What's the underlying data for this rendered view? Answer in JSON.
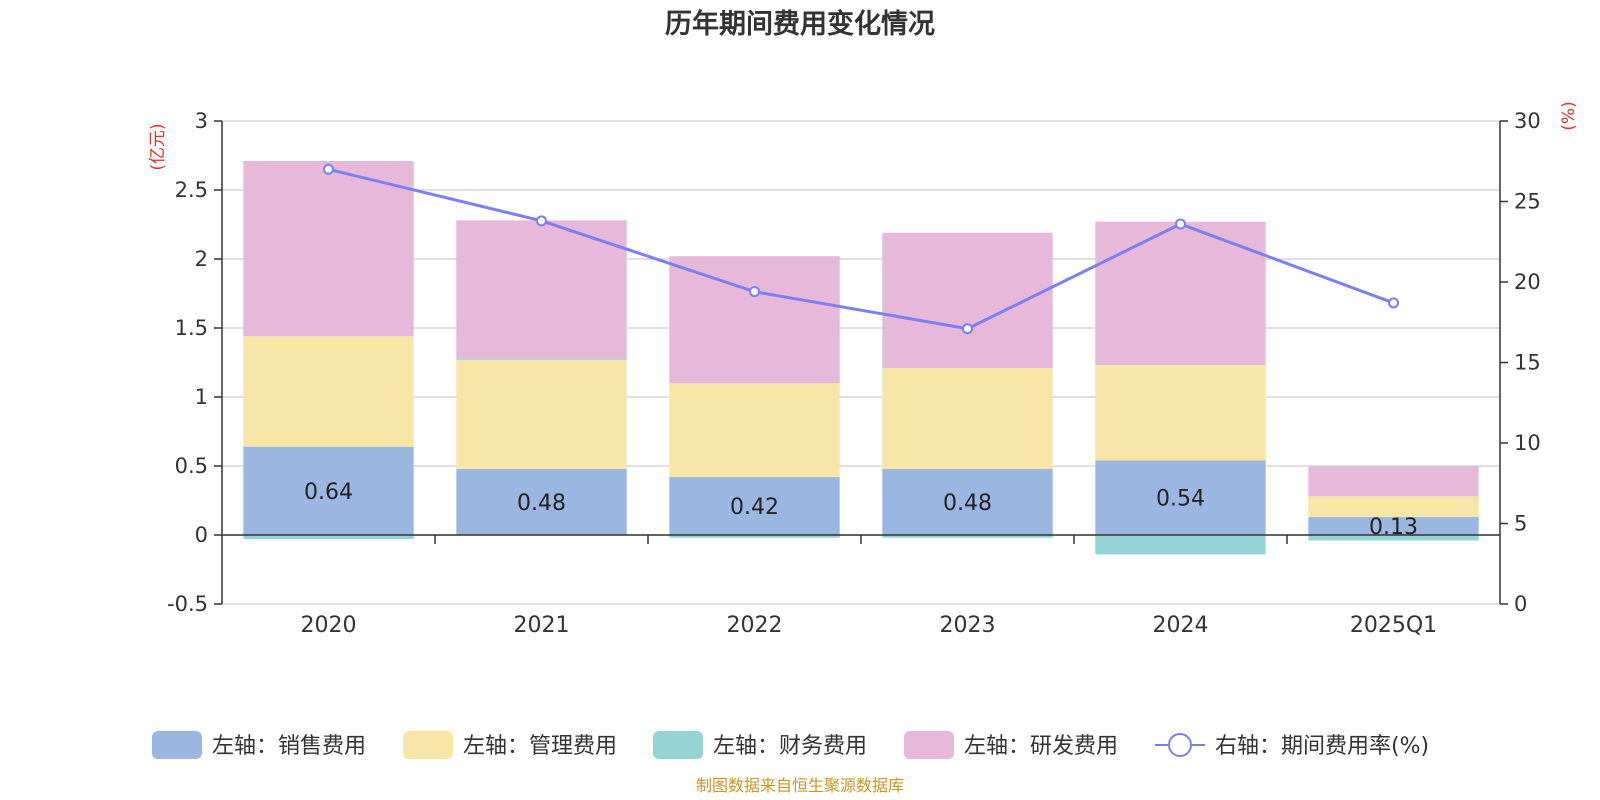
{
  "chart_data": {
    "type": "bar",
    "title": "历年期间费用变化情况",
    "categories": [
      "2020",
      "2021",
      "2022",
      "2023",
      "2024",
      "2025Q1"
    ],
    "left_axis": {
      "unit": "(亿元)",
      "ylim": [
        -0.5,
        3
      ],
      "ticks": [
        "3",
        "2.5",
        "2",
        "1.5",
        "1",
        "0.5",
        "0",
        "-0.5"
      ]
    },
    "right_axis": {
      "unit": "(%)",
      "ylim": [
        0,
        30
      ],
      "ticks": [
        "30",
        "25",
        "20",
        "15",
        "10",
        "5",
        "0"
      ]
    },
    "series": [
      {
        "name": "左轴：销售费用",
        "type": "bar",
        "color": "#9bb6e0",
        "values": [
          0.64,
          0.48,
          0.42,
          0.48,
          0.54,
          0.13
        ]
      },
      {
        "name": "左轴：管理费用",
        "type": "bar",
        "color": "#f7e6a8",
        "values": [
          0.8,
          0.79,
          0.68,
          0.73,
          0.69,
          0.15
        ]
      },
      {
        "name": "左轴：财务费用",
        "type": "bar",
        "color": "#96d3d4",
        "values": [
          -0.03,
          0.01,
          -0.02,
          -0.02,
          -0.14,
          -0.04
        ]
      },
      {
        "name": "左轴：研发费用",
        "type": "bar",
        "color": "#e6b8da",
        "values": [
          1.27,
          1.0,
          0.92,
          0.98,
          1.04,
          0.22
        ]
      },
      {
        "name": "右轴：期间费用率(%)",
        "type": "line",
        "color": "#7b7ff0",
        "values": [
          27.0,
          23.8,
          19.4,
          17.1,
          23.6,
          18.7
        ]
      }
    ],
    "data_labels": [
      "0.64",
      "0.48",
      "0.42",
      "0.48",
      "0.54",
      "0.13"
    ],
    "source": "制图数据来自恒生聚源数据库"
  }
}
